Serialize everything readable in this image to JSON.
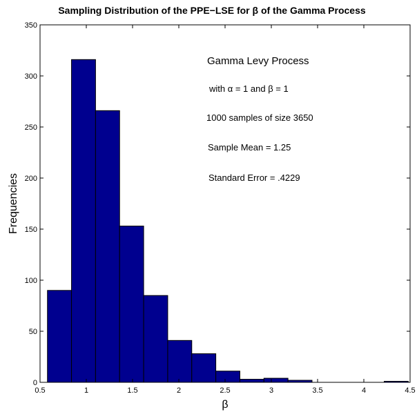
{
  "chart_data": {
    "type": "bar",
    "title": "Sampling Distribution of the PPE−LSE for β of the Gamma Process",
    "xlabel": "β",
    "ylabel": "Frequencies",
    "xlim": [
      0.5,
      4.5
    ],
    "ylim": [
      0,
      350
    ],
    "xticks": [
      "0.5",
      "1",
      "1.5",
      "2",
      "2.5",
      "3",
      "3.5",
      "4",
      "4.5"
    ],
    "yticks": [
      "0",
      "50",
      "100",
      "150",
      "200",
      "250",
      "300",
      "350"
    ],
    "grid": false,
    "bar_color": "#00008f",
    "bins": [
      {
        "x0": 0.58,
        "x1": 0.84,
        "count": 90
      },
      {
        "x0": 0.84,
        "x1": 1.1,
        "count": 316
      },
      {
        "x0": 1.1,
        "x1": 1.36,
        "count": 266
      },
      {
        "x0": 1.36,
        "x1": 1.62,
        "count": 153
      },
      {
        "x0": 1.62,
        "x1": 1.88,
        "count": 85
      },
      {
        "x0": 1.88,
        "x1": 2.14,
        "count": 41
      },
      {
        "x0": 2.14,
        "x1": 2.4,
        "count": 28
      },
      {
        "x0": 2.4,
        "x1": 2.66,
        "count": 11
      },
      {
        "x0": 2.66,
        "x1": 2.92,
        "count": 3
      },
      {
        "x0": 2.92,
        "x1": 3.18,
        "count": 4
      },
      {
        "x0": 3.18,
        "x1": 3.44,
        "count": 2
      },
      {
        "x0": 3.44,
        "x1": 3.7,
        "count": 0
      },
      {
        "x0": 3.7,
        "x1": 3.96,
        "count": 0
      },
      {
        "x0": 3.96,
        "x1": 4.22,
        "count": 0
      },
      {
        "x0": 4.22,
        "x1": 4.48,
        "count": 1
      }
    ],
    "annotations": [
      "Gamma Levy Process",
      "with α = 1 and β = 1",
      "1000 samples of size 3650",
      "Sample Mean = 1.25",
      "Standard Error = .4229"
    ]
  }
}
